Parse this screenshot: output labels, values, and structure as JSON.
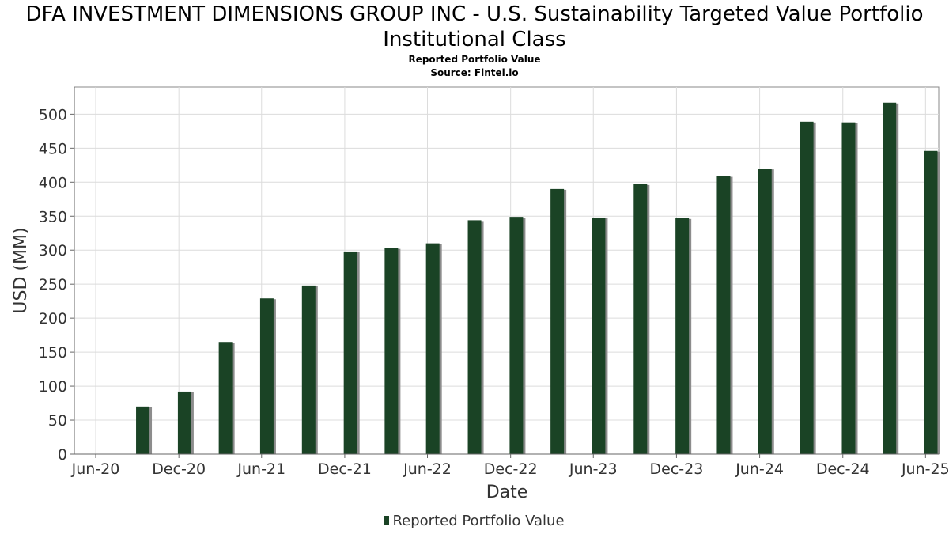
{
  "chart_data": {
    "type": "bar",
    "title": "DFA INVESTMENT DIMENSIONS GROUP INC - U.S. Sustainability Targeted Value Portfolio Institutional Class",
    "subtitle": "Reported Portfolio Value",
    "source": "Source: Fintel.io",
    "xlabel": "Date",
    "ylabel": "USD (MM)",
    "ylim": [
      0,
      540
    ],
    "yticks": [
      0,
      50,
      100,
      150,
      200,
      250,
      300,
      350,
      400,
      450,
      500
    ],
    "xlim": [
      "2020-04-15",
      "2025-06-30"
    ],
    "xticks": [
      {
        "date": "2020-06-01",
        "label": "Jun-20"
      },
      {
        "date": "2020-12-01",
        "label": "Dec-20"
      },
      {
        "date": "2021-06-01",
        "label": "Jun-21"
      },
      {
        "date": "2021-12-01",
        "label": "Dec-21"
      },
      {
        "date": "2022-06-01",
        "label": "Jun-22"
      },
      {
        "date": "2022-12-01",
        "label": "Dec-22"
      },
      {
        "date": "2023-06-01",
        "label": "Jun-23"
      },
      {
        "date": "2023-12-01",
        "label": "Dec-23"
      },
      {
        "date": "2024-06-01",
        "label": "Jun-24"
      },
      {
        "date": "2024-12-01",
        "label": "Dec-24"
      },
      {
        "date": "2025-06-01",
        "label": "Jun-25"
      }
    ],
    "grid": true,
    "legend_position": "bottom",
    "color": "#1a4325",
    "series": [
      {
        "name": "Reported Portfolio Value",
        "points": [
          {
            "x": "2020-09-30",
            "y": 70
          },
          {
            "x": "2020-12-31",
            "y": 92
          },
          {
            "x": "2021-03-31",
            "y": 165
          },
          {
            "x": "2021-06-30",
            "y": 229
          },
          {
            "x": "2021-09-30",
            "y": 248
          },
          {
            "x": "2021-12-31",
            "y": 298
          },
          {
            "x": "2022-03-31",
            "y": 303
          },
          {
            "x": "2022-06-30",
            "y": 310
          },
          {
            "x": "2022-09-30",
            "y": 344
          },
          {
            "x": "2022-12-31",
            "y": 349
          },
          {
            "x": "2023-03-31",
            "y": 390
          },
          {
            "x": "2023-06-30",
            "y": 348
          },
          {
            "x": "2023-09-30",
            "y": 397
          },
          {
            "x": "2023-12-31",
            "y": 347
          },
          {
            "x": "2024-03-31",
            "y": 409
          },
          {
            "x": "2024-06-30",
            "y": 420
          },
          {
            "x": "2024-09-30",
            "y": 489
          },
          {
            "x": "2024-12-31",
            "y": 488
          },
          {
            "x": "2025-03-31",
            "y": 517
          },
          {
            "x": "2025-06-30",
            "y": 446
          }
        ]
      }
    ]
  }
}
